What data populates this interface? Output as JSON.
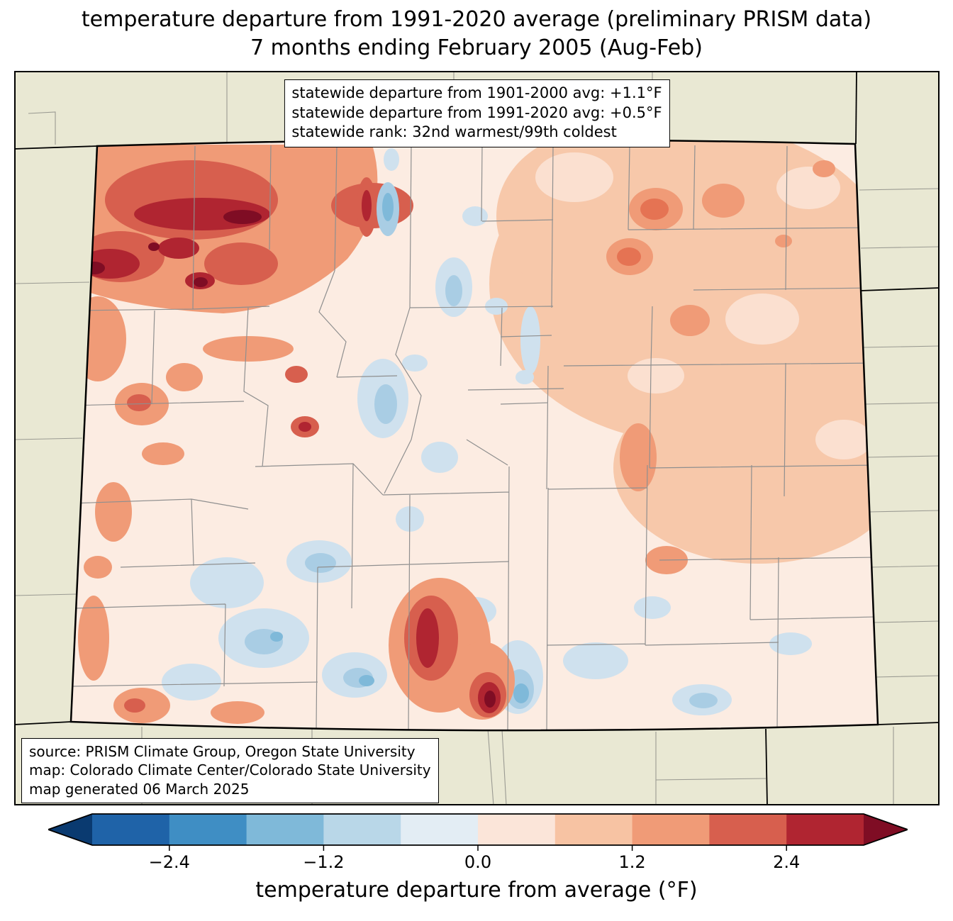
{
  "title": {
    "line1": "temperature departure from 1991-2020 average (preliminary PRISM data)",
    "line2": "7 months ending February 2005 (Aug-Feb)"
  },
  "stats_box": {
    "lines": [
      "statewide departure from 1901-2000 avg: +1.1°F",
      "statewide departure from 1991-2020 avg: +0.5°F",
      "statewide rank: 32nd warmest/99th coldest"
    ]
  },
  "source_box": {
    "lines": [
      "source: PRISM Climate Group, Oregon State University",
      "map: Colorado Climate Center/Colorado State University",
      "map generated 06 March 2025"
    ]
  },
  "map": {
    "region": "Colorado",
    "background_color": "#e9e8d3",
    "state_border_color": "#000000",
    "county_line_color": "#8f8f8f"
  },
  "colorbar": {
    "label": "temperature departure from average (°F)",
    "range": [
      -3.0,
      3.0
    ],
    "tick_values": [
      -2.4,
      -1.2,
      0.0,
      1.2,
      2.4
    ],
    "tick_labels": [
      "−2.4",
      "−1.2",
      "0.0",
      "1.2",
      "2.4"
    ],
    "segment_colors": [
      "#1f63a8",
      "#3f8ec4",
      "#7fb9d9",
      "#b9d7e8",
      "#e3edf4",
      "#fbe5d9",
      "#f7c3a3",
      "#f09b77",
      "#d75f4e",
      "#b02531"
    ],
    "under_color": "#0a3a70",
    "over_color": "#7f0d24"
  }
}
